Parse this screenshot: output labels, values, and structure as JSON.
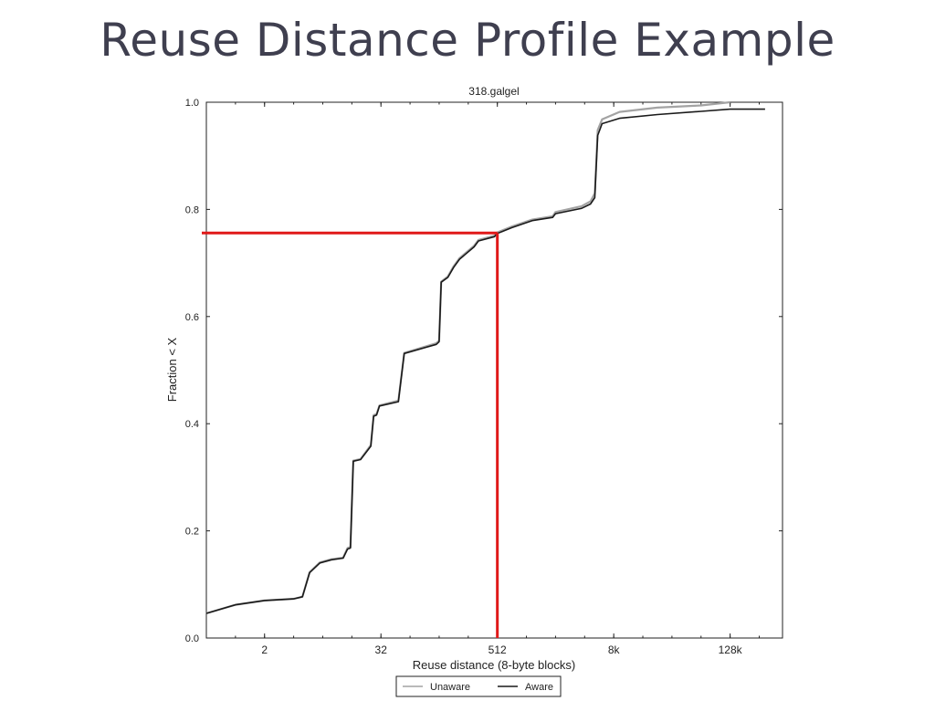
{
  "slide": {
    "title": "Reuse Distance Profile Example"
  },
  "colors": {
    "title": "#3f3f4f",
    "unaware": "#a3a3a3",
    "aware": "#1a1a1a",
    "highlight": "#e01818"
  },
  "chart_data": {
    "type": "line",
    "title": "318.galgel",
    "xlabel": "Reuse distance (8-byte blocks)",
    "ylabel": "Fraction < X",
    "x_scale": "log2",
    "xlim_log2": [
      -1,
      18.8
    ],
    "ylim": [
      0,
      1.0
    ],
    "x_ticks": [
      {
        "label": "2",
        "log2": 1
      },
      {
        "label": "32",
        "log2": 5
      },
      {
        "label": "512",
        "log2": 9
      },
      {
        "label": "8k",
        "log2": 13
      },
      {
        "label": "128k",
        "log2": 17
      }
    ],
    "y_ticks": [
      "0.0",
      "0.2",
      "0.4",
      "0.6",
      "0.8",
      "1.0"
    ],
    "grid": false,
    "legend": {
      "placement": "bottom",
      "entries": [
        "Unaware",
        "Aware"
      ]
    },
    "series": [
      {
        "name": "Unaware",
        "points": [
          [
            -1,
            0.046
          ],
          [
            0,
            0.062
          ],
          [
            1,
            0.07
          ],
          [
            2,
            0.073
          ],
          [
            2.3,
            0.077
          ],
          [
            2.55,
            0.123
          ],
          [
            2.9,
            0.141
          ],
          [
            3.3,
            0.147
          ],
          [
            3.7,
            0.15
          ],
          [
            3.85,
            0.168
          ],
          [
            3.95,
            0.17
          ],
          [
            4.05,
            0.331
          ],
          [
            4.3,
            0.334
          ],
          [
            4.65,
            0.36
          ],
          [
            4.75,
            0.416
          ],
          [
            4.85,
            0.418
          ],
          [
            4.95,
            0.434
          ],
          [
            5.6,
            0.443
          ],
          [
            5.8,
            0.532
          ],
          [
            6.9,
            0.55
          ],
          [
            7.0,
            0.555
          ],
          [
            7.07,
            0.665
          ],
          [
            7.3,
            0.675
          ],
          [
            7.5,
            0.694
          ],
          [
            7.7,
            0.709
          ],
          [
            8.2,
            0.732
          ],
          [
            8.35,
            0.743
          ],
          [
            8.9,
            0.751
          ],
          [
            9.0,
            0.757
          ],
          [
            9.5,
            0.768
          ],
          [
            10.2,
            0.781
          ],
          [
            10.9,
            0.787
          ],
          [
            11.0,
            0.795
          ],
          [
            11.9,
            0.806
          ],
          [
            12.2,
            0.815
          ],
          [
            12.35,
            0.83
          ],
          [
            12.45,
            0.948
          ],
          [
            12.6,
            0.968
          ],
          [
            13.2,
            0.982
          ],
          [
            14.5,
            0.99
          ],
          [
            16.0,
            0.994
          ],
          [
            17.0,
            1.0
          ]
        ]
      },
      {
        "name": "Aware",
        "points": [
          [
            -1,
            0.046
          ],
          [
            0,
            0.062
          ],
          [
            1,
            0.07
          ],
          [
            2,
            0.073
          ],
          [
            2.3,
            0.077
          ],
          [
            2.55,
            0.122
          ],
          [
            2.9,
            0.14
          ],
          [
            3.3,
            0.146
          ],
          [
            3.7,
            0.149
          ],
          [
            3.85,
            0.166
          ],
          [
            3.95,
            0.168
          ],
          [
            4.05,
            0.33
          ],
          [
            4.3,
            0.333
          ],
          [
            4.65,
            0.358
          ],
          [
            4.75,
            0.414
          ],
          [
            4.85,
            0.416
          ],
          [
            4.95,
            0.433
          ],
          [
            5.6,
            0.441
          ],
          [
            5.8,
            0.531
          ],
          [
            6.9,
            0.548
          ],
          [
            7.0,
            0.553
          ],
          [
            7.07,
            0.664
          ],
          [
            7.3,
            0.673
          ],
          [
            7.5,
            0.692
          ],
          [
            7.7,
            0.707
          ],
          [
            8.2,
            0.73
          ],
          [
            8.35,
            0.741
          ],
          [
            8.9,
            0.749
          ],
          [
            9.0,
            0.755
          ],
          [
            9.5,
            0.766
          ],
          [
            10.2,
            0.779
          ],
          [
            10.9,
            0.785
          ],
          [
            11.0,
            0.792
          ],
          [
            11.9,
            0.802
          ],
          [
            12.2,
            0.81
          ],
          [
            12.35,
            0.822
          ],
          [
            12.45,
            0.938
          ],
          [
            12.6,
            0.96
          ],
          [
            13.2,
            0.97
          ],
          [
            14.5,
            0.977
          ],
          [
            16.0,
            0.983
          ],
          [
            17.0,
            0.987
          ],
          [
            18.2,
            0.987
          ]
        ]
      }
    ],
    "annotations": [
      {
        "type": "crosshair",
        "x_log2": 9.0,
        "y": 0.756
      }
    ]
  }
}
